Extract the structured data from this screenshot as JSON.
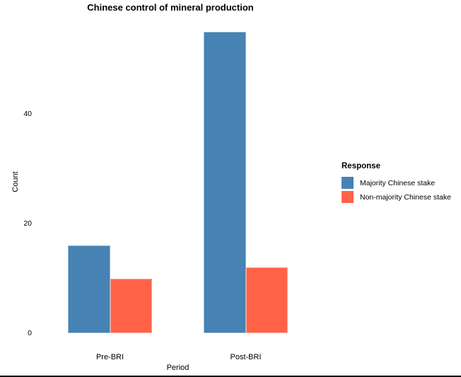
{
  "page": {
    "background_color": "#ffffff",
    "bottom_border_color": "#000000"
  },
  "chart_data": {
    "type": "bar",
    "bar_mode": "grouped",
    "title": "Chinese control of mineral production",
    "xlabel": "Period",
    "ylabel": "Count",
    "categories": [
      "Pre-BRI",
      "Post-BRI"
    ],
    "series": [
      {
        "name": "Majority Chinese stake",
        "color": "#4682B4",
        "values": [
          16,
          55
        ]
      },
      {
        "name": "Non-majority Chinese stake",
        "color": "#FF6347",
        "values": [
          10,
          12
        ]
      }
    ],
    "yticks": [
      0,
      20,
      40
    ],
    "ylim": [
      0,
      56
    ],
    "grid": false,
    "axis_lines": false,
    "legend_title": "Response",
    "legend_position": "right"
  }
}
